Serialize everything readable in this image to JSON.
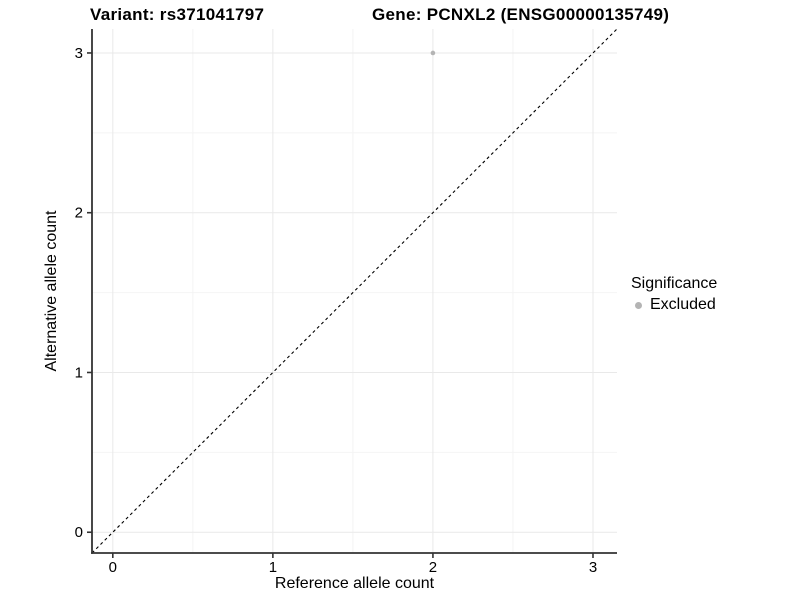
{
  "figure": {
    "title_variant": "Variant: rs371041797",
    "title_gene": "Gene: PCNXL2 (ENSG00000135749)"
  },
  "chart_data": {
    "type": "scatter",
    "title": "Variant: rs371041797   Gene: PCNXL2 (ENSG00000135749)",
    "xlabel": "Reference allele count",
    "ylabel": "Alternative allele count",
    "xlim": [
      -0.13,
      3.15
    ],
    "ylim": [
      -0.13,
      3.15
    ],
    "xticks": [
      0,
      1,
      2,
      3
    ],
    "yticks": [
      0,
      1,
      2,
      3
    ],
    "grid": {
      "major": true,
      "minor": true
    },
    "series": [
      {
        "name": "Excluded",
        "color": "#b4b4b4",
        "point_radius": 2.3,
        "points": [
          {
            "x": 2,
            "y": 3
          }
        ]
      }
    ],
    "reference_line": {
      "shape": "identity-diagonal",
      "style": "dashed",
      "color": "#000000",
      "from": [
        -0.13,
        -0.13
      ],
      "to": [
        3.15,
        3.15
      ]
    },
    "legend": {
      "title": "Significance",
      "position": "right",
      "entries": [
        {
          "label": "Excluded",
          "color": "#b4b4b4"
        }
      ]
    },
    "colors": {
      "background": "#ffffff",
      "grid_major": "#e9e9e9",
      "grid_minor": "#f4f4f4",
      "axis": "#333333",
      "text": "#000000"
    }
  }
}
